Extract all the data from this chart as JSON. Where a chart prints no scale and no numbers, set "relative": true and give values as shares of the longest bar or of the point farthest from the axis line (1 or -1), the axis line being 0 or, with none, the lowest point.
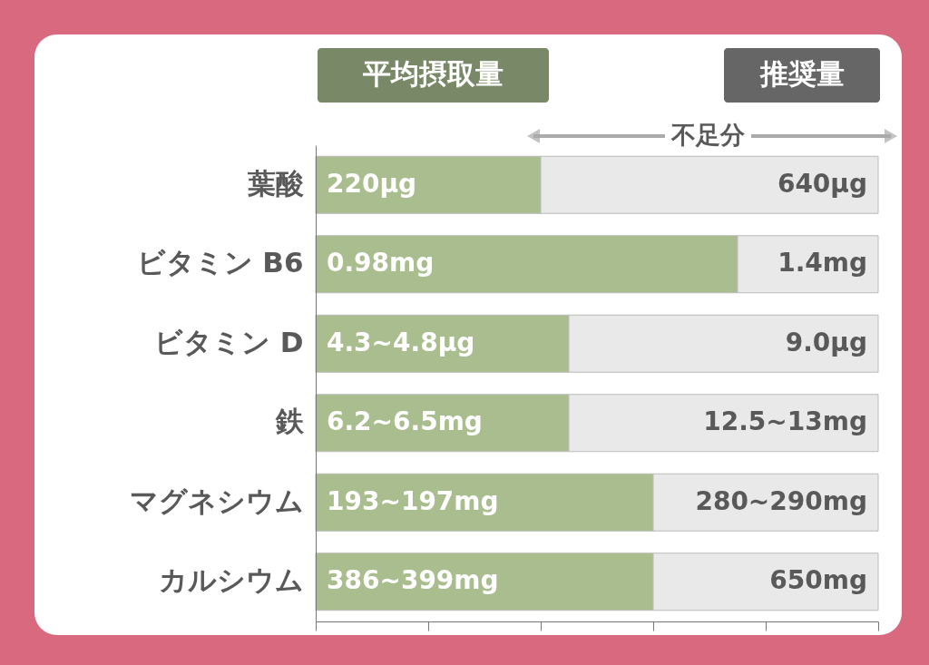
{
  "chart_data": {
    "type": "bar",
    "orientation": "horizontal",
    "stacked": true,
    "relative": true,
    "legend": "top",
    "grid": false,
    "categories": [
      "葉酸",
      "ビタミン B6",
      "ビタミン D",
      "鉄",
      "マグネシウム",
      "カルシウム"
    ],
    "series": [
      {
        "name": "平均摂取量",
        "color": "#a9bd8e",
        "values": [
          0.4,
          0.75,
          0.45,
          0.45,
          0.6,
          0.6
        ]
      },
      {
        "name": "推奨量",
        "color": "#e8e9e8",
        "values": [
          0.6,
          0.25,
          0.55,
          0.55,
          0.4,
          0.4
        ]
      }
    ],
    "annotations": [
      "不足分",
      {
        "text": "220µg",
        "y": "葉酸"
      },
      {
        "text": "640µg",
        "y": "葉酸"
      },
      {
        "text": "0.98mg",
        "y": "ビタミン B6"
      },
      {
        "text": "1.4mg",
        "y": "ビタミン B6"
      },
      {
        "text": "4.3~4.8µg",
        "y": "ビタミン D"
      },
      {
        "text": "9.0µg",
        "y": "ビタミン D"
      },
      {
        "text": "6.2~6.5mg",
        "y": "鉄"
      },
      {
        "text": "12.5~13mg",
        "y": "鉄"
      },
      {
        "text": "193~197mg",
        "y": "マグネシウム"
      },
      {
        "text": "280~290mg",
        "y": "マグネシウム"
      },
      {
        "text": "386~399mg",
        "y": "カルシウム"
      },
      {
        "text": "650mg",
        "y": "カルシウム"
      }
    ]
  }
}
